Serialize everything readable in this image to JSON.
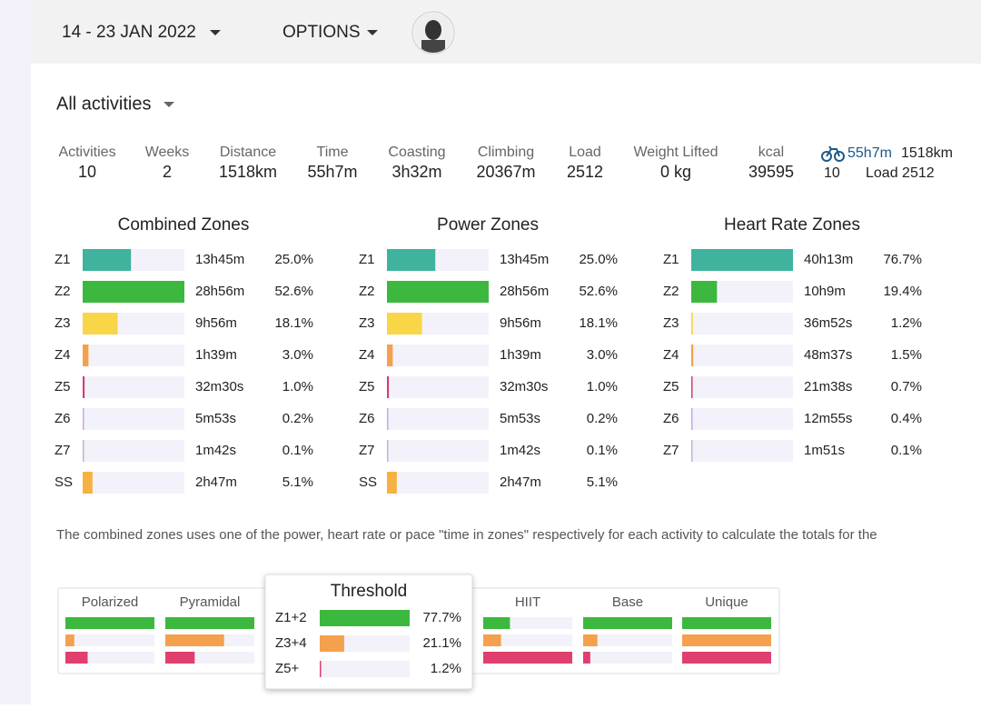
{
  "header": {
    "date_range": "14 - 23 JAN 2022",
    "options": "OPTIONS"
  },
  "filter": "All activities",
  "stats": [
    {
      "label": "Activities",
      "value": "10"
    },
    {
      "label": "Weeks",
      "value": "2"
    },
    {
      "label": "Distance",
      "value": "1518km"
    },
    {
      "label": "Time",
      "value": "55h7m"
    },
    {
      "label": "Coasting",
      "value": "3h32m"
    },
    {
      "label": "Climbing",
      "value": "20367m"
    },
    {
      "label": "Load",
      "value": "2512"
    },
    {
      "label": "Weight Lifted",
      "value": "0 kg"
    },
    {
      "label": "kcal",
      "value": "39595"
    }
  ],
  "ride_summary": {
    "time": "55h7m",
    "distance": "1518km",
    "count": "10",
    "load": "Load 2512"
  },
  "zone_panels": [
    {
      "title": "Combined Zones",
      "zones": [
        {
          "zone": "Z1",
          "color": "#3fb39e",
          "time": "13h45m",
          "percent": 25.0,
          "percent_label": "25.0%"
        },
        {
          "zone": "Z2",
          "color": "#3db83f",
          "time": "28h56m",
          "percent": 52.6,
          "percent_label": "52.6%"
        },
        {
          "zone": "Z3",
          "color": "#f9d548",
          "time": "9h56m",
          "percent": 18.1,
          "percent_label": "18.1%"
        },
        {
          "zone": "Z4",
          "color": "#f5a04c",
          "time": "1h39m",
          "percent": 3.0,
          "percent_label": "3.0%"
        },
        {
          "zone": "Z5",
          "color": "#d63c74",
          "time": "32m30s",
          "percent": 1.0,
          "percent_label": "1.0%"
        },
        {
          "zone": "Z6",
          "color": "#c9a6e6",
          "time": "5m53s",
          "percent": 0.2,
          "percent_label": "0.2%"
        },
        {
          "zone": "Z7",
          "color": "#b8b8d8",
          "time": "1m42s",
          "percent": 0.1,
          "percent_label": "0.1%"
        },
        {
          "zone": "SS",
          "color": "#f5b142",
          "time": "2h47m",
          "percent": 5.1,
          "percent_label": "5.1%"
        }
      ]
    },
    {
      "title": "Power Zones",
      "zones": [
        {
          "zone": "Z1",
          "color": "#3fb39e",
          "time": "13h45m",
          "percent": 25.0,
          "percent_label": "25.0%"
        },
        {
          "zone": "Z2",
          "color": "#3db83f",
          "time": "28h56m",
          "percent": 52.6,
          "percent_label": "52.6%"
        },
        {
          "zone": "Z3",
          "color": "#f9d548",
          "time": "9h56m",
          "percent": 18.1,
          "percent_label": "18.1%"
        },
        {
          "zone": "Z4",
          "color": "#f5a04c",
          "time": "1h39m",
          "percent": 3.0,
          "percent_label": "3.0%"
        },
        {
          "zone": "Z5",
          "color": "#d63c74",
          "time": "32m30s",
          "percent": 1.0,
          "percent_label": "1.0%"
        },
        {
          "zone": "Z6",
          "color": "#c9a6e6",
          "time": "5m53s",
          "percent": 0.2,
          "percent_label": "0.2%"
        },
        {
          "zone": "Z7",
          "color": "#b8b8d8",
          "time": "1m42s",
          "percent": 0.1,
          "percent_label": "0.1%"
        },
        {
          "zone": "SS",
          "color": "#f5b142",
          "time": "2h47m",
          "percent": 5.1,
          "percent_label": "5.1%"
        }
      ]
    },
    {
      "title": "Heart Rate Zones",
      "zones": [
        {
          "zone": "Z1",
          "color": "#3fb39e",
          "time": "40h13m",
          "percent": 76.7,
          "percent_label": "76.7%"
        },
        {
          "zone": "Z2",
          "color": "#3db83f",
          "time": "10h9m",
          "percent": 19.4,
          "percent_label": "19.4%"
        },
        {
          "zone": "Z3",
          "color": "#f9d548",
          "time": "36m52s",
          "percent": 1.2,
          "percent_label": "1.2%"
        },
        {
          "zone": "Z4",
          "color": "#f5a04c",
          "time": "48m37s",
          "percent": 1.5,
          "percent_label": "1.5%"
        },
        {
          "zone": "Z5",
          "color": "#d63c74",
          "time": "21m38s",
          "percent": 0.7,
          "percent_label": "0.7%"
        },
        {
          "zone": "Z6",
          "color": "#c9a6e6",
          "time": "12m55s",
          "percent": 0.4,
          "percent_label": "0.4%"
        },
        {
          "zone": "Z7",
          "color": "#b8b8d8",
          "time": "1m51s",
          "percent": 0.1,
          "percent_label": "0.1%"
        }
      ]
    }
  ],
  "note": "The combined zones uses one of the power, heart rate or pace \"time in zones\" respectively for each activity to calculate the totals for the",
  "distribution_colors": [
    "#3db83f",
    "#f5a04c",
    "#e0406e"
  ],
  "distribution_types": [
    {
      "name": "Polarized",
      "levels": [
        100,
        10,
        25
      ]
    },
    {
      "name": "Pyramidal",
      "levels": [
        100,
        66,
        33
      ]
    },
    {
      "name": "HIIT",
      "levels": [
        30,
        20,
        100
      ]
    },
    {
      "name": "Base",
      "levels": [
        100,
        16,
        8
      ]
    },
    {
      "name": "Unique",
      "levels": [
        100,
        100,
        100
      ]
    }
  ],
  "popup": {
    "title": "Threshold",
    "rows": [
      {
        "label": "Z1+2",
        "percent": 77.7,
        "percent_label": "77.7%"
      },
      {
        "label": "Z3+4",
        "percent": 21.1,
        "percent_label": "21.1%"
      },
      {
        "label": "Z5+",
        "percent": 1.2,
        "percent_label": "1.2%"
      }
    ]
  }
}
